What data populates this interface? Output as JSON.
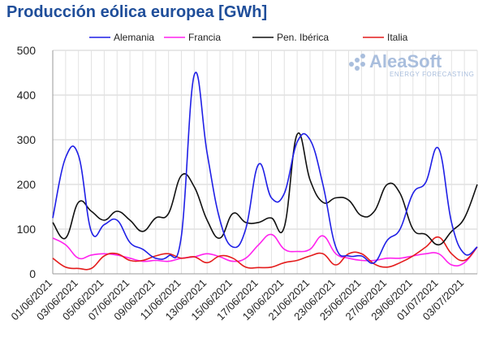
{
  "chart_data": {
    "type": "line",
    "title": "Producción eólica europea [GWh]",
    "ylim": [
      0,
      500
    ],
    "yticks": [
      "0",
      "100",
      "200",
      "300",
      "400",
      "500"
    ],
    "grid": true,
    "legend_position": "top",
    "xtick_labels": [
      "01/06/2021",
      "03/06/2021",
      "05/06/2021",
      "07/06/2021",
      "09/06/2021",
      "11/06/2021",
      "13/06/2021",
      "15/06/2021",
      "17/06/2021",
      "19/06/2021",
      "21/06/2021",
      "23/06/2021",
      "25/06/2021",
      "27/06/2021",
      "29/06/2021",
      "01/07/2021",
      "03/07/2021"
    ],
    "x": [
      "01/06/2021",
      "02/06/2021",
      "03/06/2021",
      "04/06/2021",
      "05/06/2021",
      "06/06/2021",
      "07/06/2021",
      "08/06/2021",
      "09/06/2021",
      "10/06/2021",
      "11/06/2021",
      "12/06/2021",
      "13/06/2021",
      "14/06/2021",
      "15/06/2021",
      "16/06/2021",
      "17/06/2021",
      "18/06/2021",
      "19/06/2021",
      "20/06/2021",
      "21/06/2021",
      "22/06/2021",
      "23/06/2021",
      "24/06/2021",
      "25/06/2021",
      "26/06/2021",
      "27/06/2021",
      "28/06/2021",
      "29/06/2021",
      "30/06/2021",
      "01/07/2021",
      "02/07/2021",
      "03/07/2021",
      "04/07/2021"
    ],
    "series": [
      {
        "name": "Alemania",
        "color": "#1f1fe6",
        "values": [
          125,
          260,
          265,
          95,
          110,
          120,
          70,
          55,
          35,
          40,
          85,
          445,
          270,
          120,
          60,
          100,
          245,
          170,
          180,
          295,
          300,
          200,
          60,
          40,
          40,
          25,
          75,
          100,
          180,
          205,
          280,
          115,
          45,
          60
        ]
      },
      {
        "name": "Francia",
        "color": "#ff22ee",
        "values": [
          80,
          65,
          35,
          42,
          45,
          42,
          35,
          28,
          30,
          28,
          35,
          38,
          45,
          38,
          28,
          35,
          65,
          88,
          55,
          50,
          55,
          85,
          45,
          35,
          30,
          30,
          35,
          35,
          40,
          45,
          45,
          20,
          25,
          60
        ]
      },
      {
        "name": "Pen. Ibérica",
        "color": "#111111",
        "values": [
          115,
          80,
          160,
          140,
          120,
          140,
          120,
          95,
          125,
          135,
          220,
          195,
          120,
          80,
          135,
          115,
          115,
          125,
          105,
          312,
          210,
          160,
          170,
          165,
          130,
          140,
          200,
          180,
          100,
          88,
          65,
          95,
          125,
          200
        ]
      },
      {
        "name": "Italia",
        "color": "#e41c1c",
        "values": [
          35,
          15,
          12,
          12,
          40,
          45,
          30,
          30,
          40,
          45,
          35,
          38,
          25,
          40,
          35,
          15,
          14,
          15,
          25,
          30,
          40,
          45,
          20,
          45,
          45,
          22,
          15,
          25,
          40,
          60,
          82,
          45,
          30,
          60
        ]
      }
    ]
  },
  "watermark": {
    "brand": "AleaSoft",
    "tagline": "ENERGY FORECASTING"
  }
}
